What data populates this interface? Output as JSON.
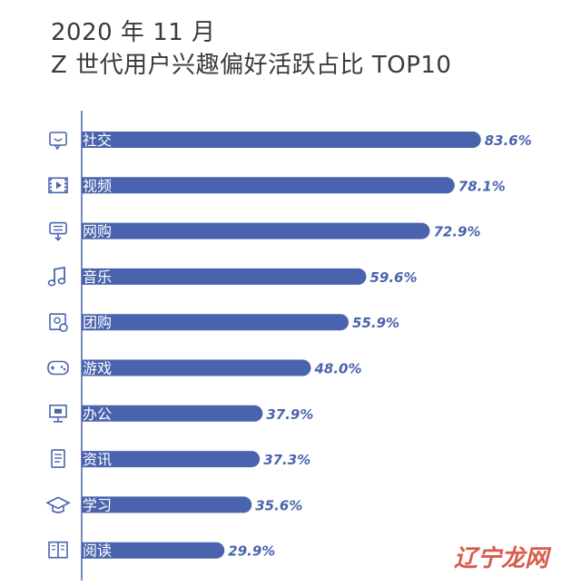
{
  "header": {
    "date": "2020 年 11 月",
    "subject": "Z 世代用户兴趣偏好活跃占比 TOP10"
  },
  "watermark": "辽宁龙网",
  "colors": {
    "bar": "#4a63ae",
    "label": "#ffffff",
    "value": "#4a63ae",
    "axis": "#4a63ae",
    "icon": "#4a63ae"
  },
  "chart_data": {
    "type": "bar",
    "orientation": "horizontal",
    "title": "Z 世代用户兴趣偏好活跃占比 TOP10",
    "subtitle": "2020 年 11 月",
    "categories": [
      "社交",
      "视频",
      "网购",
      "音乐",
      "团购",
      "游戏",
      "办公",
      "资讯",
      "学习",
      "阅读"
    ],
    "icons": [
      "chat-icon",
      "film-icon",
      "shopping-icon",
      "music-note-icon",
      "group-buy-icon",
      "gamepad-icon",
      "monitor-icon",
      "document-icon",
      "graduation-cap-icon",
      "book-icon"
    ],
    "values": [
      83.6,
      78.1,
      72.9,
      59.6,
      55.9,
      48.0,
      37.9,
      37.3,
      35.6,
      29.9
    ],
    "value_labels": [
      "83.6%",
      "78.1%",
      "72.9%",
      "59.6%",
      "55.9%",
      "48.0%",
      "37.9%",
      "37.3%",
      "35.6%",
      "29.9%"
    ],
    "xlim": [
      0,
      100
    ],
    "grid": false,
    "legend": "none"
  }
}
